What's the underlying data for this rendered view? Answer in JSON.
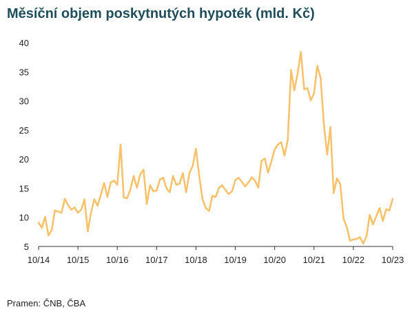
{
  "title": "Měsíční objem poskytnutých hypoték (mld. Kč)",
  "source": "Pramen: ČNB, ČBA",
  "colors": {
    "line": "#f7c26b",
    "axis": "#333333"
  },
  "chart_data": {
    "type": "line",
    "title": "Měsíční objem poskytnutých hypoték (mld. Kč)",
    "xlabel": "",
    "ylabel": "",
    "ylim": [
      5,
      40
    ],
    "yticks": [
      5,
      10,
      15,
      20,
      25,
      30,
      35,
      40
    ],
    "xtick_labels": [
      "10/14",
      "10/15",
      "10/16",
      "10/17",
      "10/18",
      "10/19",
      "10/20",
      "10/21",
      "10/22",
      "10/23"
    ],
    "grid": false,
    "x_start": "10/14",
    "x_end": "10/23",
    "series": [
      {
        "values": [
          9.1,
          8.2,
          10.1,
          6.9,
          7.8,
          11.2,
          11.0,
          10.8,
          13.2,
          12.1,
          11.3,
          11.7,
          10.8,
          11.3,
          13.1,
          7.6,
          10.8,
          13.1,
          12.0,
          13.9,
          15.9,
          13.5,
          16.0,
          16.3,
          15.6,
          22.5,
          13.4,
          13.3,
          14.8,
          17.1,
          15.1,
          17.4,
          18.2,
          12.3,
          15.5,
          14.5,
          14.6,
          16.5,
          16.8,
          15.0,
          14.3,
          17.1,
          15.6,
          15.8,
          17.6,
          14.3,
          17.6,
          18.8,
          21.8,
          17.1,
          13.1,
          11.6,
          11.1,
          13.7,
          13.5,
          15.1,
          15.5,
          14.7,
          14.0,
          14.5,
          16.4,
          16.8,
          16.1,
          15.3,
          16.0,
          16.9,
          16.3,
          15.1,
          19.7,
          20.1,
          17.7,
          19.6,
          21.7,
          22.5,
          22.9,
          20.6,
          23.3,
          35.3,
          31.8,
          34.7,
          38.4,
          32.0,
          32.2,
          30.1,
          31.3,
          36.0,
          34.0,
          26.0,
          20.8,
          25.5,
          14.2,
          16.7,
          15.7,
          9.8,
          8.3,
          6.0,
          6.2,
          6.3,
          6.6,
          5.5,
          6.7,
          10.4,
          8.8,
          10.2,
          11.6,
          9.4,
          11.4,
          11.2,
          13.2
        ]
      }
    ]
  }
}
